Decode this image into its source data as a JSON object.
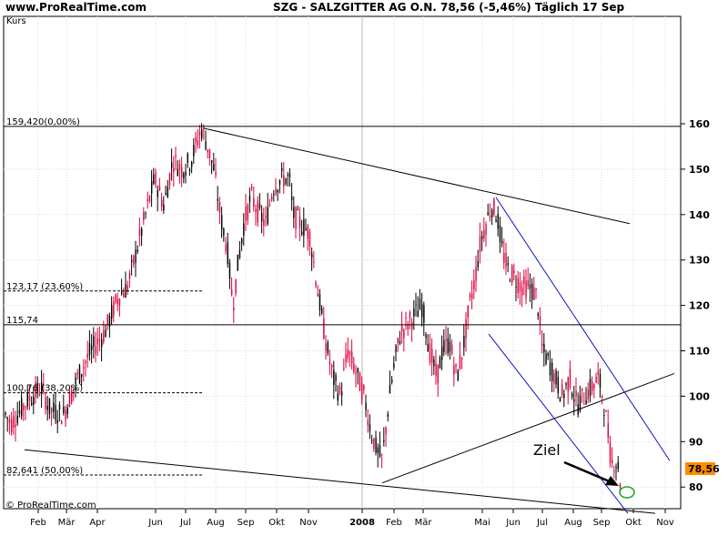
{
  "header": {
    "url": "www.ProRealTime.com",
    "title": "SZG - SALZGITTER AG O.N.     78,56 (-5,46%)     Täglich  17 Sep"
  },
  "chart_data": {
    "type": "candlestick",
    "title": "SZG - SALZGITTER AG O.N.",
    "ylabel": "Kurs",
    "xlabel": "",
    "ylim": [
      72,
      164
    ],
    "grid": true,
    "y_ticks": [
      80,
      90,
      100,
      110,
      120,
      130,
      140,
      150,
      160
    ],
    "x_ticks": [
      "Feb",
      "Mär",
      "Apr",
      "Jun",
      "Jul",
      "Aug",
      "Sep",
      "Okt",
      "Nov",
      "2008",
      "Feb",
      "Mär",
      "Mai",
      "Jun",
      "Jul",
      "Aug",
      "Sep",
      "Okt",
      "Nov"
    ],
    "levels": [
      {
        "label": "159,420(0,00%)",
        "value": 159.42
      },
      {
        "label": "123,17 (23,60%)",
        "value": 123.17
      },
      {
        "label": "115,74",
        "value": 115.74
      },
      {
        "label": "100,76 (38,20%)",
        "value": 100.76
      },
      {
        "label": "82,641 (50,00%)",
        "value": 82.641
      }
    ],
    "last_price_label": "78,56",
    "annotation_text": "Ziel",
    "copyright": "© ProRealTime.com",
    "series": [
      {
        "name": "SZG",
        "anchors": [
          [
            0,
            98
          ],
          [
            12,
            94
          ],
          [
            30,
            99
          ],
          [
            45,
            102
          ],
          [
            55,
            97
          ],
          [
            70,
            96
          ],
          [
            85,
            104
          ],
          [
            100,
            110
          ],
          [
            115,
            114
          ],
          [
            130,
            122
          ],
          [
            140,
            124
          ],
          [
            150,
            132
          ],
          [
            160,
            140
          ],
          [
            170,
            148
          ],
          [
            180,
            142
          ],
          [
            190,
            152
          ],
          [
            200,
            150
          ],
          [
            210,
            152
          ],
          [
            218,
            157
          ],
          [
            222,
            159
          ],
          [
            228,
            155
          ],
          [
            235,
            150
          ],
          [
            242,
            140
          ],
          [
            250,
            132
          ],
          [
            256,
            120
          ],
          [
            262,
            130
          ],
          [
            268,
            138
          ],
          [
            276,
            144
          ],
          [
            285,
            140
          ],
          [
            292,
            138
          ],
          [
            300,
            146
          ],
          [
            310,
            148
          ],
          [
            318,
            148
          ],
          [
            322,
            140
          ],
          [
            330,
            138
          ],
          [
            340,
            136
          ],
          [
            350,
            122
          ],
          [
            358,
            112
          ],
          [
            366,
            104
          ],
          [
            374,
            100
          ],
          [
            382,
            110
          ],
          [
            390,
            106
          ],
          [
            400,
            100
          ],
          [
            408,
            92
          ],
          [
            414,
            88
          ],
          [
            420,
            86
          ],
          [
            428,
            100
          ],
          [
            434,
            108
          ],
          [
            440,
            114
          ],
          [
            448,
            116
          ],
          [
            456,
            118
          ],
          [
            464,
            120
          ],
          [
            472,
            110
          ],
          [
            480,
            104
          ],
          [
            486,
            110
          ],
          [
            494,
            112
          ],
          [
            502,
            104
          ],
          [
            510,
            112
          ],
          [
            516,
            120
          ],
          [
            522,
            126
          ],
          [
            528,
            134
          ],
          [
            534,
            138
          ],
          [
            540,
            142
          ],
          [
            546,
            140
          ],
          [
            552,
            132
          ],
          [
            558,
            128
          ],
          [
            566,
            126
          ],
          [
            574,
            124
          ],
          [
            582,
            124
          ],
          [
            590,
            122
          ],
          [
            596,
            110
          ],
          [
            602,
            108
          ],
          [
            610,
            104
          ],
          [
            618,
            100
          ],
          [
            626,
            104
          ],
          [
            634,
            98
          ],
          [
            642,
            100
          ],
          [
            650,
            102
          ],
          [
            658,
            104
          ],
          [
            664,
            98
          ],
          [
            668,
            92
          ],
          [
            672,
            85
          ],
          [
            676,
            86
          ],
          [
            680,
            84
          ],
          [
            683,
            78.5
          ]
        ]
      }
    ]
  }
}
